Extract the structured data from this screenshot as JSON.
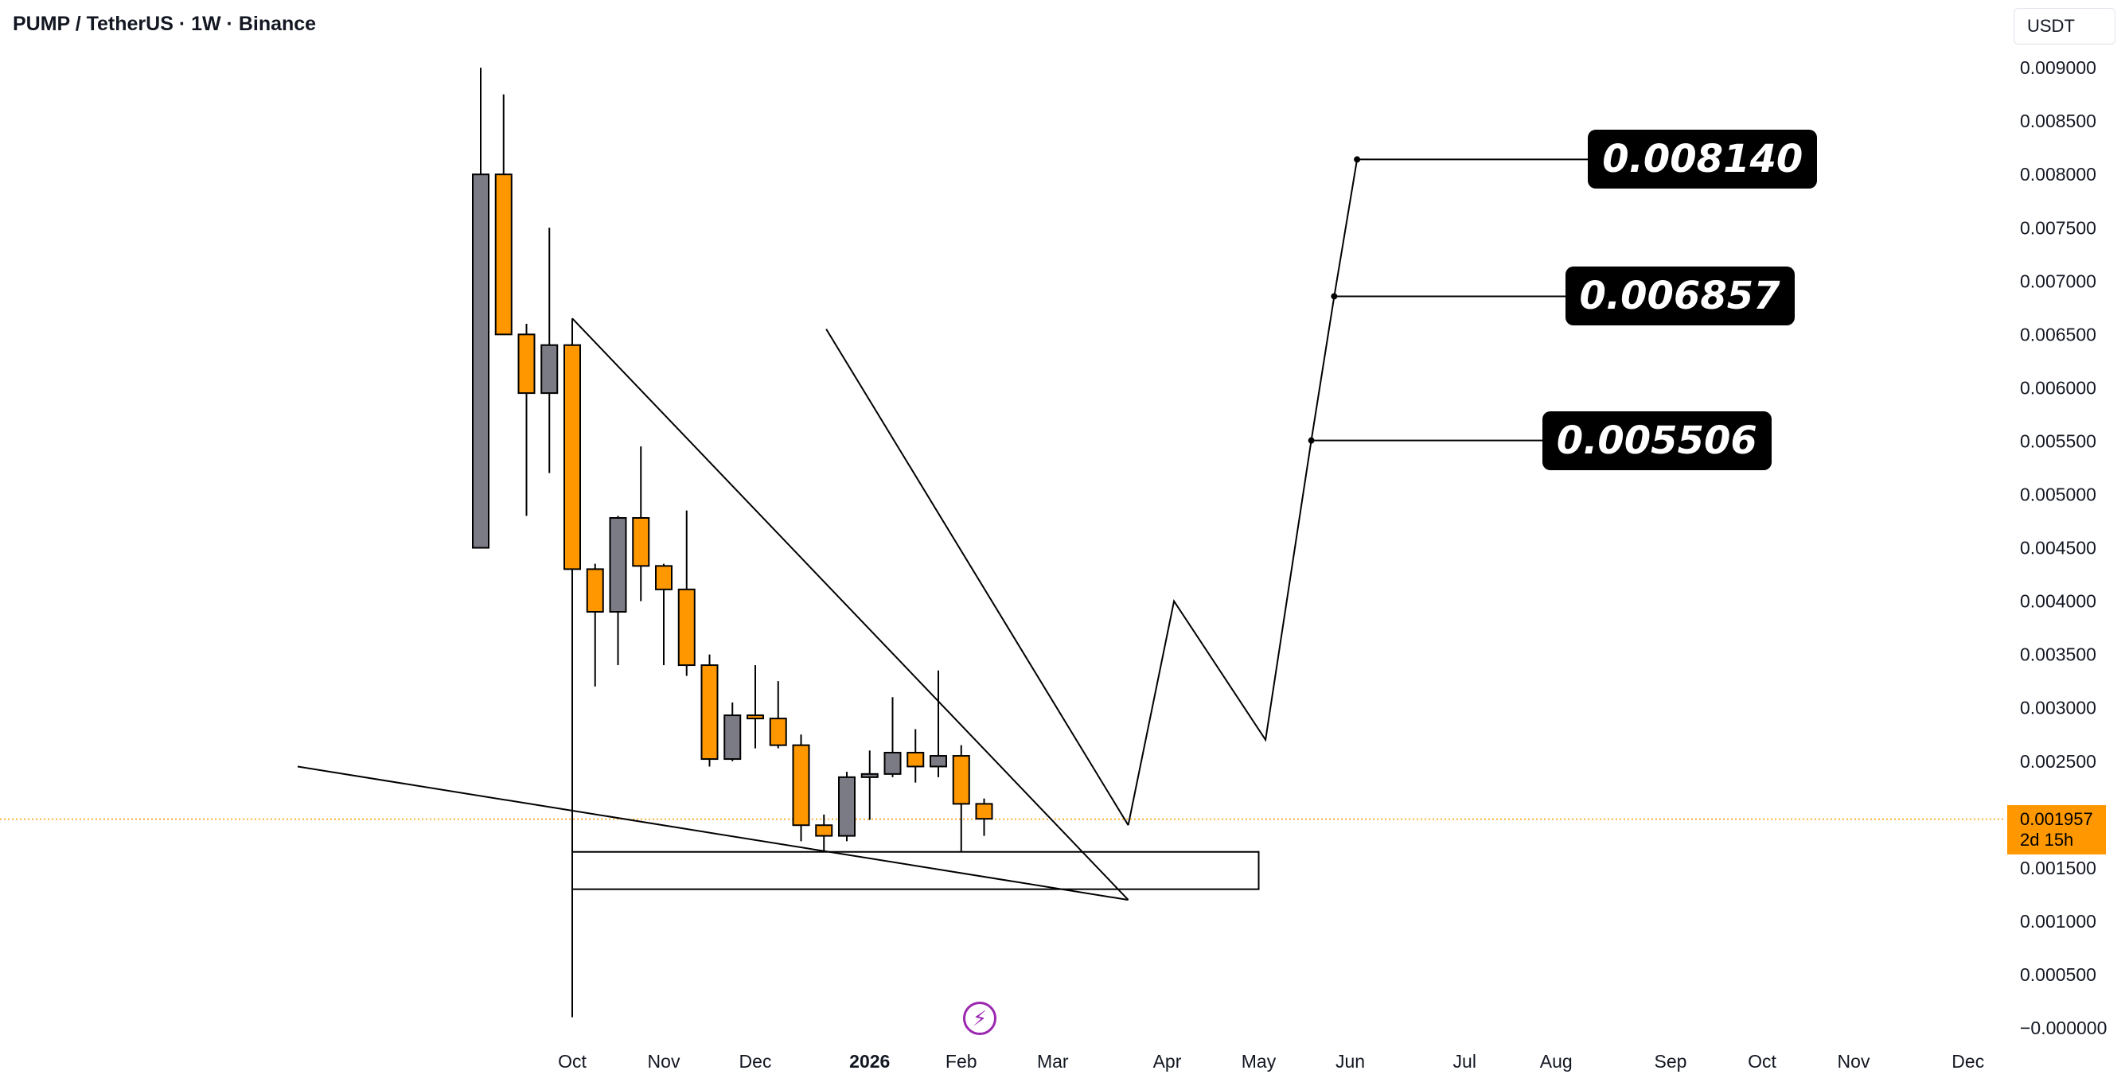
{
  "header": {
    "title": "PUMP / TetherUS · 1W · Binance",
    "currency": "USDT"
  },
  "chart_data": {
    "type": "candlestick",
    "title": "PUMP / TetherUS · 1W · Binance",
    "ylim": [
      -0.0,
      0.0093
    ],
    "y_ticks": [
      "0.009000",
      "0.008500",
      "0.008000",
      "0.007500",
      "0.007000",
      "0.006500",
      "0.006000",
      "0.005500",
      "0.005000",
      "0.004500",
      "0.004000",
      "0.003500",
      "0.003000",
      "0.002500",
      "0.002000",
      "0.001500",
      "0.001000",
      "0.000500",
      "−0.000000"
    ],
    "y_tick_values": [
      0.009,
      0.0085,
      0.008,
      0.0075,
      0.007,
      0.0065,
      0.006,
      0.0055,
      0.005,
      0.0045,
      0.004,
      0.0035,
      0.003,
      0.0025,
      0.002,
      0.0015,
      0.001,
      0.0005,
      0.0
    ],
    "x_ticks": [
      {
        "label": "Oct",
        "week": 4,
        "bold": false
      },
      {
        "label": "Nov",
        "week": 8,
        "bold": false
      },
      {
        "label": "Dec",
        "week": 12,
        "bold": false
      },
      {
        "label": "2026",
        "week": 17,
        "bold": true
      },
      {
        "label": "Feb",
        "week": 21,
        "bold": false
      },
      {
        "label": "Mar",
        "week": 25,
        "bold": false
      },
      {
        "label": "Apr",
        "week": 30,
        "bold": false
      },
      {
        "label": "May",
        "week": 34,
        "bold": false
      },
      {
        "label": "Jun",
        "week": 38,
        "bold": false
      },
      {
        "label": "Jul",
        "week": 43,
        "bold": false
      },
      {
        "label": "Aug",
        "week": 47,
        "bold": false
      },
      {
        "label": "Sep",
        "week": 52,
        "bold": false
      },
      {
        "label": "Oct",
        "week": 56,
        "bold": false
      },
      {
        "label": "Nov",
        "week": 60,
        "bold": false
      },
      {
        "label": "Dec",
        "week": 65,
        "bold": false
      }
    ],
    "candles": [
      {
        "w": 0,
        "o": 0.0045,
        "h": 0.009,
        "l": 0.0045,
        "c": 0.008
      },
      {
        "w": 1,
        "o": 0.008,
        "h": 0.00875,
        "l": 0.0065,
        "c": 0.0065
      },
      {
        "w": 2,
        "o": 0.0065,
        "h": 0.0066,
        "l": 0.0048,
        "c": 0.00595
      },
      {
        "w": 3,
        "o": 0.00595,
        "h": 0.0075,
        "l": 0.0052,
        "c": 0.0064
      },
      {
        "w": 4,
        "o": 0.0064,
        "h": 0.0066,
        "l": 0.0041,
        "c": 0.0043
      },
      {
        "w": 5,
        "o": 0.0043,
        "h": 0.00435,
        "l": 0.0032,
        "c": 0.0039
      },
      {
        "w": 6,
        "o": 0.0039,
        "h": 0.0048,
        "l": 0.0034,
        "c": 0.00478
      },
      {
        "w": 7,
        "o": 0.00478,
        "h": 0.00545,
        "l": 0.004,
        "c": 0.00433
      },
      {
        "w": 8,
        "o": 0.00433,
        "h": 0.00435,
        "l": 0.0034,
        "c": 0.00411
      },
      {
        "w": 9,
        "o": 0.00411,
        "h": 0.00485,
        "l": 0.0033,
        "c": 0.0034
      },
      {
        "w": 10,
        "o": 0.0034,
        "h": 0.0035,
        "l": 0.00245,
        "c": 0.00252
      },
      {
        "w": 11,
        "o": 0.00252,
        "h": 0.00305,
        "l": 0.0025,
        "c": 0.00293
      },
      {
        "w": 12,
        "o": 0.00293,
        "h": 0.0034,
        "l": 0.00262,
        "c": 0.0029
      },
      {
        "w": 13,
        "o": 0.0029,
        "h": 0.00325,
        "l": 0.00262,
        "c": 0.00265
      },
      {
        "w": 14,
        "o": 0.00265,
        "h": 0.00275,
        "l": 0.00175,
        "c": 0.0019
      },
      {
        "w": 15,
        "o": 0.0019,
        "h": 0.002,
        "l": 0.00165,
        "c": 0.0018
      },
      {
        "w": 16,
        "o": 0.0018,
        "h": 0.0024,
        "l": 0.00175,
        "c": 0.00235
      },
      {
        "w": 17,
        "o": 0.00235,
        "h": 0.0026,
        "l": 0.00195,
        "c": 0.00238
      },
      {
        "w": 18,
        "o": 0.00238,
        "h": 0.0031,
        "l": 0.00235,
        "c": 0.00258
      },
      {
        "w": 19,
        "o": 0.00258,
        "h": 0.0028,
        "l": 0.0023,
        "c": 0.00245
      },
      {
        "w": 20,
        "o": 0.00245,
        "h": 0.00335,
        "l": 0.00235,
        "c": 0.00255
      },
      {
        "w": 21,
        "o": 0.00255,
        "h": 0.00265,
        "l": 0.00165,
        "c": 0.0021
      },
      {
        "w": 22,
        "o": 0.0021,
        "h": 0.00215,
        "l": 0.0018,
        "c": 0.00196
      }
    ],
    "colors": {
      "up": "#7b7b85",
      "down": "#ff9800",
      "wick": "#000000",
      "line": "#000000",
      "price_line": "#ff9800"
    },
    "current_price": {
      "value": 0.001957,
      "label": "0.001957",
      "countdown": "2d 15h"
    },
    "drawings": {
      "vertical_line": {
        "week": 4,
        "y_top": 0.00665,
        "y_bottom": 0.0001
      },
      "support_box": {
        "x0": 4,
        "x1": 34,
        "y_top": 0.00165,
        "y_bottom": 0.0013
      },
      "lines": [
        {
          "name": "upper-trendline",
          "points": [
            [
              4,
              0.00665
            ],
            [
              28.3,
              0.0012
            ]
          ]
        },
        {
          "name": "lower-trendline",
          "points": [
            [
              -8,
              0.00245
            ],
            [
              28.3,
              0.0012
            ]
          ]
        },
        {
          "name": "outer-trendline",
          "points": [
            [
              15.1,
              0.00655
            ],
            [
              28.3,
              0.0019
            ]
          ]
        },
        {
          "name": "projection-path",
          "points": [
            [
              28.3,
              0.0019
            ],
            [
              30.3,
              0.004
            ],
            [
              34.3,
              0.0027
            ],
            [
              36.3,
              0.005506
            ],
            [
              37.3,
              0.006857
            ],
            [
              38.3,
              0.00814
            ]
          ]
        }
      ],
      "targets": [
        {
          "value": 0.00814,
          "label": "0.008140",
          "week_start": 38.3,
          "week_end": 48.6
        },
        {
          "value": 0.006857,
          "label": "0.006857",
          "week_start": 37.3,
          "week_end": 47.6
        },
        {
          "value": 0.005506,
          "label": "0.005506",
          "week_start": 36.3,
          "week_end": 46.6
        }
      ]
    }
  }
}
